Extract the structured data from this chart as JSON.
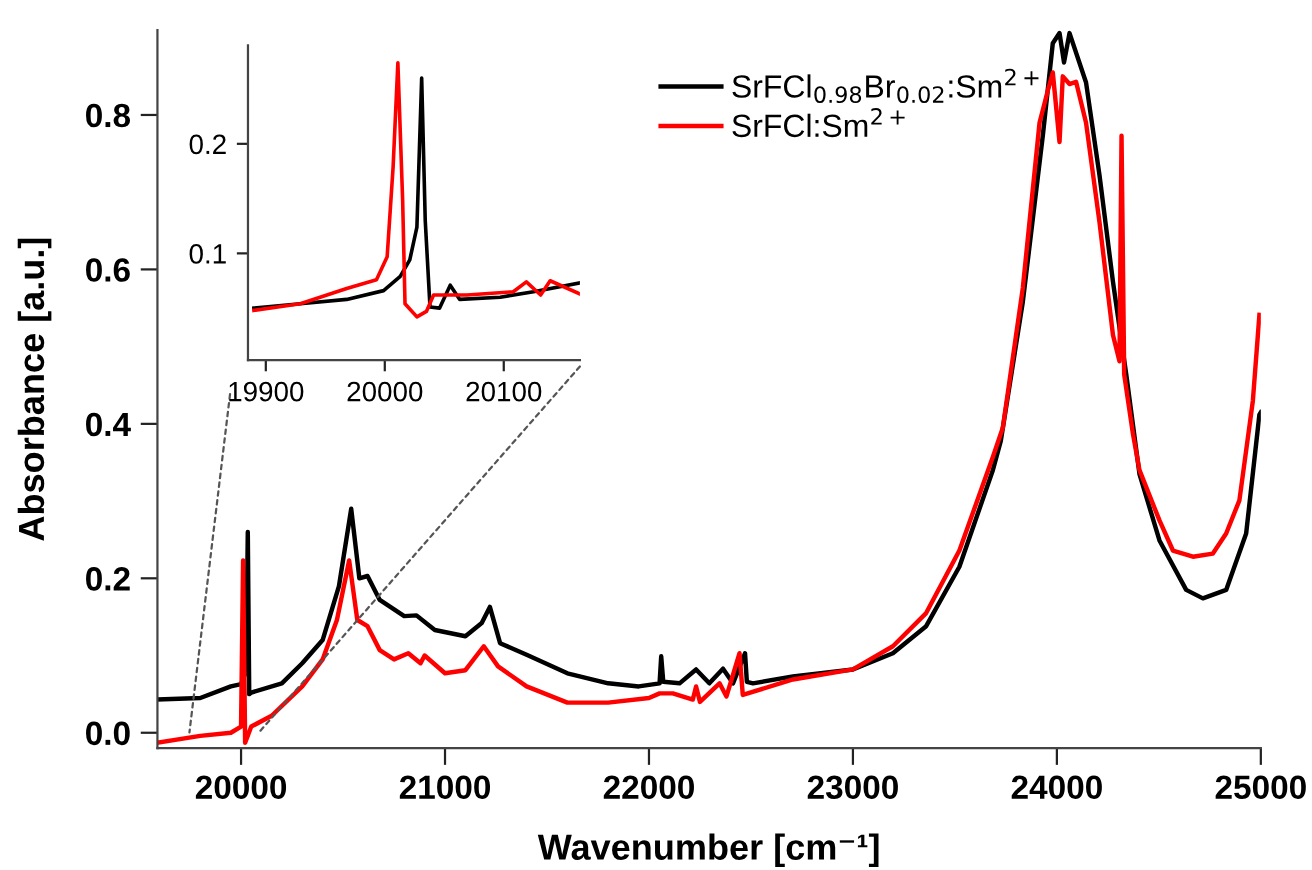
{
  "chart_data": [
    {
      "type": "line",
      "xlabel": "Wavenumber [cm⁻¹]",
      "ylabel": "Absorbance [a.u.]",
      "xlim": [
        19590,
        25000
      ],
      "ylim": [
        -0.02,
        0.91
      ],
      "xticks": [
        20000,
        21000,
        22000,
        23000,
        24000,
        25000
      ],
      "yticks": [
        {
          "value": 0.0,
          "label": "0.0"
        },
        0.2,
        0.4,
        0.6,
        0.8
      ],
      "legend": "top",
      "grid": false,
      "series": [
        {
          "name": "SrFCl$_{0.98}$Br$_{0.02}$:Sm$^{2+}$",
          "color": "#000000",
          "x": [
            19590,
            19800,
            19950,
            20000,
            20025,
            20033,
            20040,
            20050,
            20200,
            20300,
            20400,
            20480,
            20540,
            20580,
            20620,
            20680,
            20800,
            20860,
            20950,
            21100,
            21180,
            21220,
            21270,
            21400,
            21600,
            21800,
            21950,
            22052,
            22060,
            22070,
            22150,
            22231,
            22296,
            22363,
            22412,
            22471,
            22480,
            22510,
            22706,
            23000,
            23196,
            23359,
            23522,
            23686,
            23725,
            23833,
            23931,
            23980,
            24013,
            24035,
            24062,
            24143,
            24209,
            24275,
            24340,
            24405,
            24503,
            24634,
            24716,
            24830,
            24928,
            24993,
            25000
          ],
          "values": [
            0.043,
            0.045,
            0.06,
            0.063,
            0.08,
            0.26,
            0.05,
            0.052,
            0.064,
            0.09,
            0.12,
            0.19,
            0.29,
            0.2,
            0.203,
            0.172,
            0.151,
            0.152,
            0.133,
            0.125,
            0.142,
            0.163,
            0.116,
            0.101,
            0.077,
            0.064,
            0.06,
            0.064,
            0.099,
            0.066,
            0.064,
            0.082,
            0.064,
            0.083,
            0.064,
            0.103,
            0.066,
            0.064,
            0.073,
            0.082,
            0.103,
            0.138,
            0.215,
            0.34,
            0.378,
            0.558,
            0.773,
            0.893,
            0.906,
            0.868,
            0.906,
            0.842,
            0.722,
            0.584,
            0.464,
            0.335,
            0.249,
            0.185,
            0.174,
            0.185,
            0.258,
            0.412,
            0.415
          ]
        },
        {
          "name": "SrFCl:Sm$^{2+}$",
          "color": "#ff0000",
          "x": [
            19590,
            19800,
            19950,
            20000,
            20010,
            20020,
            20050,
            20150,
            20300,
            20400,
            20470,
            20530,
            20570,
            20620,
            20680,
            20750,
            20820,
            20880,
            20900,
            21000,
            21100,
            21190,
            21260,
            21400,
            21600,
            21800,
            22000,
            22052,
            22117,
            22215,
            22231,
            22250,
            22346,
            22380,
            22444,
            22460,
            22706,
            23000,
            23196,
            23359,
            23522,
            23686,
            23735,
            23833,
            23915,
            23957,
            23980,
            24013,
            24029,
            24062,
            24094,
            24143,
            24209,
            24275,
            24307,
            24317,
            24330,
            24373,
            24405,
            24503,
            24569,
            24667,
            24765,
            24830,
            24895,
            24961,
            24993
          ],
          "values": [
            -0.013,
            -0.004,
            0.0,
            0.008,
            0.223,
            -0.013,
            0.008,
            0.022,
            0.06,
            0.095,
            0.146,
            0.223,
            0.146,
            0.138,
            0.107,
            0.095,
            0.103,
            0.09,
            0.1,
            0.077,
            0.081,
            0.112,
            0.086,
            0.06,
            0.039,
            0.039,
            0.045,
            0.051,
            0.051,
            0.043,
            0.06,
            0.04,
            0.064,
            0.047,
            0.103,
            0.049,
            0.069,
            0.082,
            0.112,
            0.155,
            0.236,
            0.357,
            0.395,
            0.576,
            0.79,
            0.833,
            0.855,
            0.765,
            0.85,
            0.84,
            0.843,
            0.79,
            0.661,
            0.515,
            0.481,
            0.773,
            0.464,
            0.387,
            0.34,
            0.275,
            0.236,
            0.228,
            0.232,
            0.258,
            0.301,
            0.43,
            0.541
          ]
        }
      ]
    },
    {
      "type": "line",
      "xlim": [
        19885,
        20164
      ],
      "ylim": [
        0.0025,
        0.29
      ],
      "xticks": [
        19900,
        20000,
        20100
      ],
      "yticks": [
        0.1,
        0.2
      ],
      "grid": false,
      "series": [
        {
          "color": "#000000",
          "x": [
            19890,
            19929,
            19968,
            19999,
            20013,
            20021,
            20027,
            20031,
            20034,
            20038,
            20046,
            20055,
            20063,
            20097,
            20125,
            20164
          ],
          "values": [
            0.05,
            0.054,
            0.058,
            0.066,
            0.079,
            0.094,
            0.124,
            0.26,
            0.13,
            0.051,
            0.05,
            0.071,
            0.058,
            0.06,
            0.065,
            0.073
          ]
        },
        {
          "color": "#ff0000",
          "x": [
            19890,
            19929,
            19968,
            19993,
            20002,
            20007,
            20011,
            20015,
            20017,
            20027,
            20035,
            20041,
            20069,
            20108,
            20119,
            20131,
            20139,
            20164
          ],
          "values": [
            0.048,
            0.054,
            0.068,
            0.076,
            0.097,
            0.179,
            0.274,
            0.149,
            0.054,
            0.042,
            0.047,
            0.062,
            0.062,
            0.065,
            0.074,
            0.062,
            0.075,
            0.063
          ]
        }
      ]
    }
  ]
}
